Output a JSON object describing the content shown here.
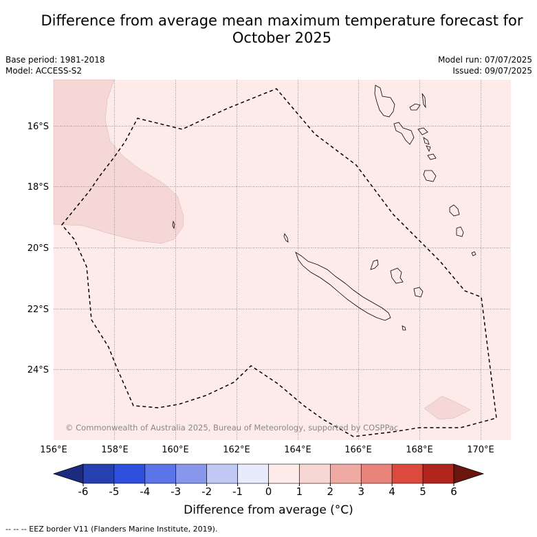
{
  "title_line1": "Difference from average mean maximum temperature forecast for",
  "title_line2": "October 2025",
  "meta": {
    "base_period": "Base period: 1981-2018",
    "model": "Model: ACCESS-S2",
    "model_run": "Model run: 07/07/2025",
    "issued": "Issued: 09/07/2025"
  },
  "copyright": "© Commonwealth of Australia 2025, Bureau of Meteorology, supported by COSPPac",
  "x_ticks": [
    "156°E",
    "158°E",
    "160°E",
    "162°E",
    "164°E",
    "166°E",
    "168°E",
    "170°E"
  ],
  "y_ticks": [
    "16°S",
    "18°S",
    "20°S",
    "22°S",
    "24°S"
  ],
  "colorbar": {
    "title": "Difference from average (°C)",
    "ticks": [
      "-6",
      "-5",
      "-4",
      "-3",
      "-2",
      "-1",
      "0",
      "1",
      "2",
      "3",
      "4",
      "5",
      "6"
    ],
    "colors": [
      "#1c2a80",
      "#2640b0",
      "#2f4fdf",
      "#5b74e8",
      "#8797ec",
      "#c0c8f4",
      "#e8ebfb",
      "#fcebe8",
      "#f7d6d3",
      "#f0aaa4",
      "#e8847c",
      "#dc4a3e",
      "#b0261f",
      "#6b150f"
    ]
  },
  "footer": "--  --  -- EEZ border V11 (Flanders Marine Institute, 2019).",
  "map_colors": {
    "background": "#fcebe9",
    "warm_region": "#f5d7d5"
  }
}
